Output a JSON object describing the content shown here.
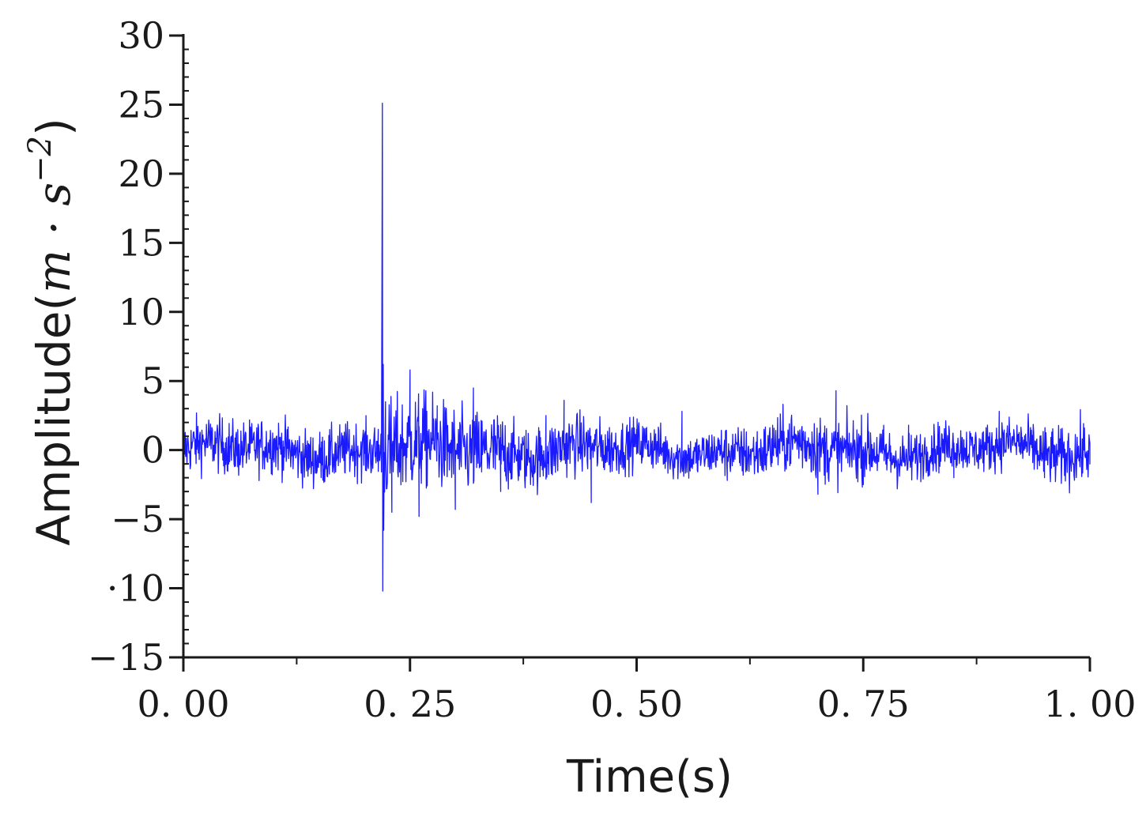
{
  "chart_data": {
    "type": "line",
    "title": "",
    "xlabel": "Time(s)",
    "ylabel": {
      "prefix": "Amplitude(",
      "unit_m": "m",
      "dot": " · ",
      "unit_s": "s",
      "exponent": "−2",
      "suffix": ")"
    },
    "xlim": [
      0,
      1
    ],
    "ylim": [
      -15,
      30
    ],
    "x_ticks": [
      0,
      0.25,
      0.5,
      0.75,
      1.0
    ],
    "x_tick_labels": [
      "0. 00",
      "0. 25",
      "0. 50",
      "0. 75",
      "1. 00"
    ],
    "y_ticks": [
      30,
      25,
      20,
      15,
      10,
      5,
      0,
      -5,
      -10,
      -15
    ],
    "y_tick_labels": [
      "30",
      "25",
      "20",
      "15",
      "10",
      "5",
      "0",
      "−5",
      "·10",
      "−15"
    ],
    "grid": false,
    "legend": "none",
    "line_color": "#1a1aff",
    "series": [
      {
        "sampling": "dense noisy acceleration signal, ~2000 samples over 0–1 s",
        "x": [
          0,
          0.03,
          0.06,
          0.1,
          0.15,
          0.2,
          0.215,
          0.219,
          0.2195,
          0.22,
          0.2205,
          0.221,
          0.223,
          0.23,
          0.25,
          0.26,
          0.28,
          0.3,
          0.32,
          0.35,
          0.4,
          0.42,
          0.45,
          0.5,
          0.55,
          0.6,
          0.65,
          0.7,
          0.72,
          0.75,
          0.8,
          0.85,
          0.9,
          0.95,
          1.0
        ],
        "values": [
          0.3,
          1.5,
          -1.2,
          0.8,
          0.4,
          1.2,
          1.5,
          10.3,
          25.1,
          -10.2,
          6.2,
          -5.8,
          3.5,
          -4.5,
          5.8,
          -4.8,
          3.2,
          -4.3,
          4.5,
          -3.0,
          2.5,
          3.6,
          -3.8,
          1.5,
          2.8,
          -2.2,
          1.8,
          -3.2,
          4.3,
          -2.5,
          1.8,
          -2.0,
          2.8,
          -2.0,
          0.5
        ]
      }
    ]
  }
}
